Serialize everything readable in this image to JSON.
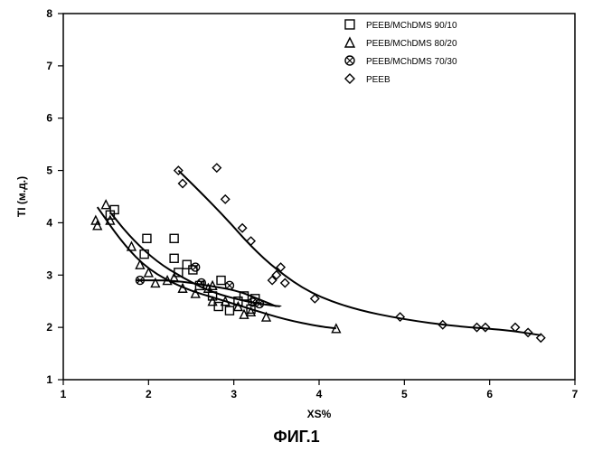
{
  "caption": "ФИГ.1",
  "chart": {
    "type": "scatter",
    "xlabel": "XS%",
    "ylabel": "TI (м.д.)",
    "label_fontsize": 12,
    "tick_fontsize": 12,
    "background_color": "#ffffff",
    "axis_color": "#000000",
    "grid": "off",
    "xlim": [
      1,
      7
    ],
    "ylim": [
      1,
      8
    ],
    "xtick_step": 1,
    "ytick_step": 1,
    "legend": {
      "position": "top-right",
      "fontsize": 10,
      "marker_size": 10,
      "items": [
        {
          "marker": "square",
          "label": "PEEB/MChDMS 90/10"
        },
        {
          "marker": "triangle",
          "label": "PEEB/MChDMS 80/20"
        },
        {
          "marker": "circle-x",
          "label": "PEEB/MChDMS 70/30"
        },
        {
          "marker": "diamond",
          "label": "PEEB"
        }
      ]
    },
    "series": [
      {
        "name": "PEEB/MChDMS 90/10",
        "marker": "square",
        "color": "#000000",
        "points": [
          [
            1.55,
            4.15
          ],
          [
            1.6,
            4.25
          ],
          [
            1.98,
            3.7
          ],
          [
            1.95,
            3.4
          ],
          [
            2.3,
            3.7
          ],
          [
            2.3,
            3.32
          ],
          [
            2.35,
            3.05
          ],
          [
            2.45,
            3.2
          ],
          [
            2.52,
            3.1
          ],
          [
            2.6,
            2.8
          ],
          [
            2.75,
            2.6
          ],
          [
            2.85,
            2.9
          ],
          [
            2.82,
            2.4
          ],
          [
            2.95,
            2.32
          ],
          [
            3.05,
            2.5
          ],
          [
            3.12,
            2.6
          ],
          [
            3.25,
            2.55
          ],
          [
            3.2,
            2.35
          ]
        ]
      },
      {
        "name": "PEEB/MChDMS 80/20",
        "marker": "triangle",
        "color": "#000000",
        "points": [
          [
            1.38,
            4.05
          ],
          [
            1.4,
            3.95
          ],
          [
            1.5,
            4.35
          ],
          [
            1.55,
            4.05
          ],
          [
            1.8,
            3.55
          ],
          [
            1.9,
            3.2
          ],
          [
            2.0,
            3.05
          ],
          [
            2.08,
            2.85
          ],
          [
            2.22,
            2.9
          ],
          [
            2.3,
            2.95
          ],
          [
            2.4,
            2.75
          ],
          [
            2.55,
            2.65
          ],
          [
            2.7,
            2.75
          ],
          [
            2.75,
            2.8
          ],
          [
            2.75,
            2.5
          ],
          [
            2.9,
            2.5
          ],
          [
            3.05,
            2.4
          ],
          [
            3.12,
            2.25
          ],
          [
            3.2,
            2.3
          ],
          [
            3.38,
            2.2
          ],
          [
            4.2,
            1.98
          ]
        ]
      },
      {
        "name": "PEEB/MChDMS 70/30",
        "marker": "circle-x",
        "color": "#000000",
        "points": [
          [
            1.9,
            2.9
          ],
          [
            2.55,
            3.15
          ],
          [
            2.62,
            2.85
          ],
          [
            2.95,
            2.8
          ],
          [
            3.22,
            2.48
          ],
          [
            3.3,
            2.45
          ]
        ]
      },
      {
        "name": "PEEB",
        "marker": "diamond",
        "color": "#000000",
        "points": [
          [
            2.35,
            5.0
          ],
          [
            2.4,
            4.75
          ],
          [
            2.8,
            5.05
          ],
          [
            2.9,
            4.45
          ],
          [
            3.1,
            3.9
          ],
          [
            3.2,
            3.65
          ],
          [
            3.45,
            2.9
          ],
          [
            3.5,
            3.0
          ],
          [
            3.55,
            3.15
          ],
          [
            3.6,
            2.85
          ],
          [
            3.95,
            2.55
          ],
          [
            4.95,
            2.2
          ],
          [
            5.45,
            2.05
          ],
          [
            5.85,
            2.0
          ],
          [
            5.95,
            2.0
          ],
          [
            6.3,
            2.0
          ],
          [
            6.45,
            1.9
          ],
          [
            6.6,
            1.8
          ]
        ]
      }
    ],
    "trend_curves": [
      {
        "name": "curve-9010",
        "color": "#000000",
        "width": 2,
        "points": [
          [
            1.55,
            4.2
          ],
          [
            1.8,
            3.7
          ],
          [
            2.1,
            3.25
          ],
          [
            2.4,
            2.95
          ],
          [
            2.7,
            2.7
          ],
          [
            3.0,
            2.55
          ],
          [
            3.3,
            2.45
          ],
          [
            3.55,
            2.4
          ]
        ]
      },
      {
        "name": "curve-8020",
        "color": "#000000",
        "width": 2,
        "points": [
          [
            1.4,
            4.3
          ],
          [
            1.7,
            3.6
          ],
          [
            2.0,
            3.1
          ],
          [
            2.4,
            2.75
          ],
          [
            2.8,
            2.55
          ],
          [
            3.2,
            2.35
          ],
          [
            3.6,
            2.15
          ],
          [
            4.0,
            2.02
          ],
          [
            4.2,
            1.98
          ]
        ]
      },
      {
        "name": "curve-7030",
        "color": "#000000",
        "width": 2,
        "points": [
          [
            1.85,
            2.9
          ],
          [
            2.3,
            2.9
          ],
          [
            2.7,
            2.8
          ],
          [
            3.05,
            2.7
          ],
          [
            3.35,
            2.5
          ],
          [
            3.5,
            2.4
          ]
        ]
      },
      {
        "name": "curve-peeb",
        "color": "#000000",
        "width": 2,
        "points": [
          [
            2.35,
            5.0
          ],
          [
            2.6,
            4.6
          ],
          [
            2.9,
            4.1
          ],
          [
            3.2,
            3.55
          ],
          [
            3.5,
            3.1
          ],
          [
            3.9,
            2.65
          ],
          [
            4.4,
            2.35
          ],
          [
            5.0,
            2.15
          ],
          [
            5.6,
            2.02
          ],
          [
            6.2,
            1.95
          ],
          [
            6.6,
            1.85
          ]
        ]
      }
    ]
  }
}
